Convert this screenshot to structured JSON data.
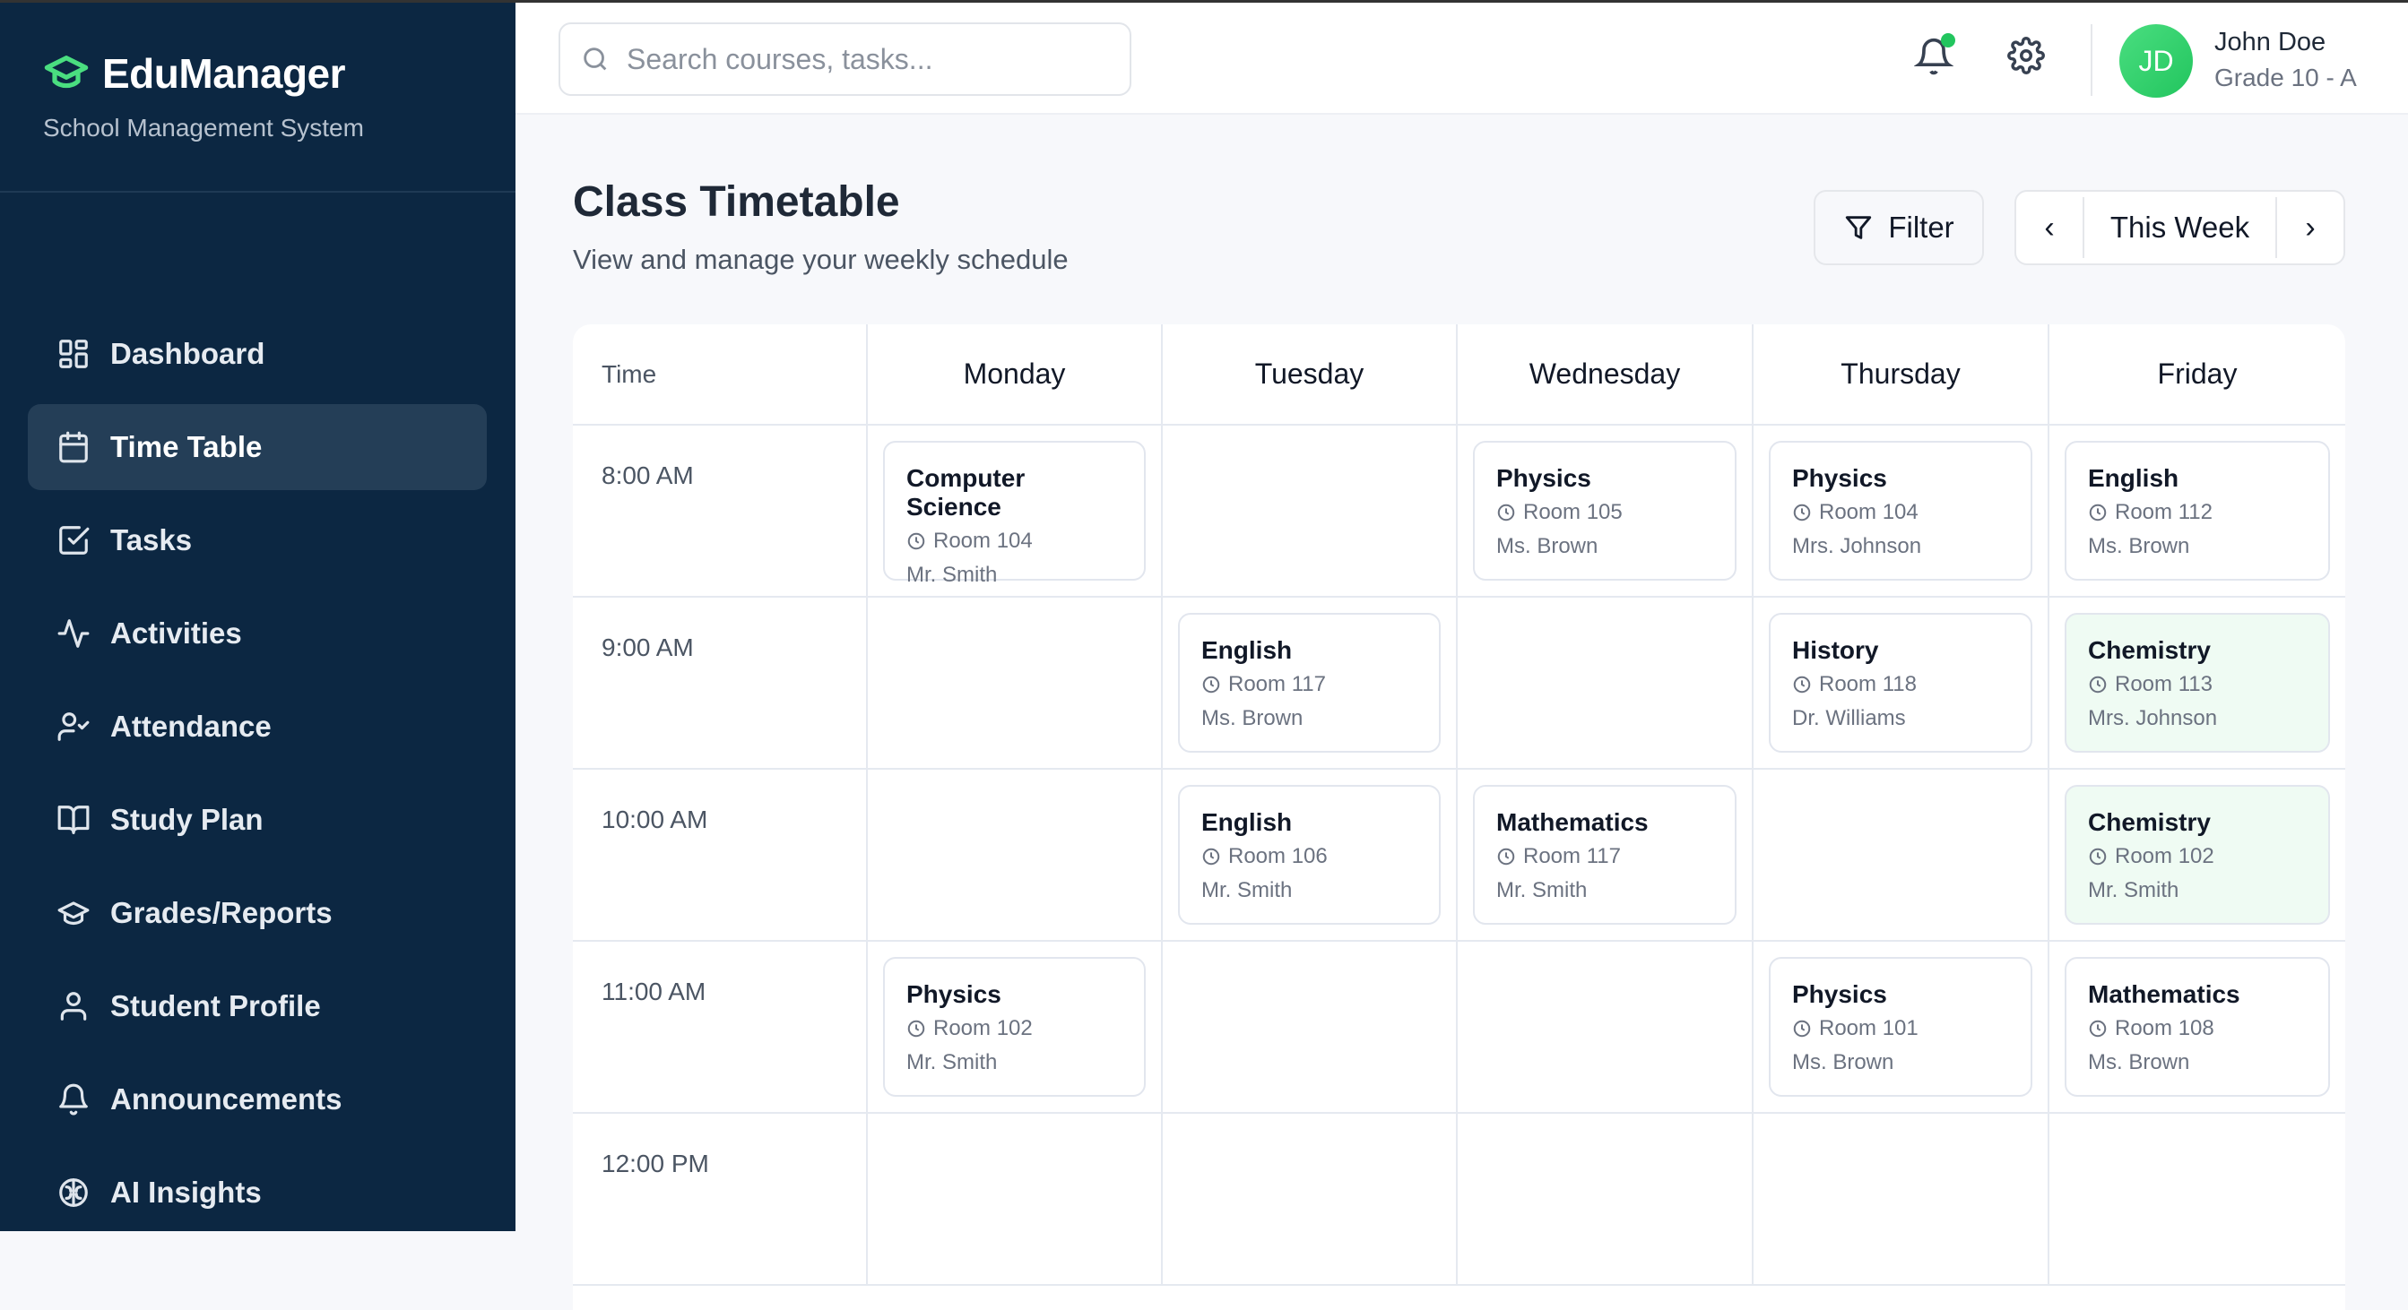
{
  "sidebar": {
    "brand": "EduManager",
    "subtitle": "School Management System",
    "items": [
      {
        "label": "Dashboard",
        "icon": "dashboard-icon"
      },
      {
        "label": "Time Table",
        "icon": "calendar-icon",
        "active": true
      },
      {
        "label": "Tasks",
        "icon": "checkbox-icon"
      },
      {
        "label": "Activities",
        "icon": "activity-icon"
      },
      {
        "label": "Attendance",
        "icon": "user-check-icon"
      },
      {
        "label": "Study Plan",
        "icon": "book-icon"
      },
      {
        "label": "Grades/Reports",
        "icon": "graduation-cap-icon"
      },
      {
        "label": "Student Profile",
        "icon": "user-icon"
      },
      {
        "label": "Announcements",
        "icon": "bell-icon"
      },
      {
        "label": "AI Insights",
        "icon": "brain-icon"
      }
    ]
  },
  "header": {
    "search_placeholder": "Search courses, tasks...",
    "user": {
      "initials": "JD",
      "name": "John Doe",
      "grade": "Grade 10 - A"
    }
  },
  "page": {
    "title": "Class Timetable",
    "subtitle": "View and manage your weekly schedule",
    "filter_label": "Filter",
    "week_label": "This Week"
  },
  "colors": {
    "accent": "#22c55e",
    "sidebar_bg": "#0c2742",
    "highlight_card": "#effbf3"
  },
  "timetable": {
    "time_header": "Time",
    "days": [
      "Monday",
      "Tuesday",
      "Wednesday",
      "Thursday",
      "Friday"
    ],
    "rows": [
      {
        "time": "8:00 AM",
        "cells": [
          {
            "subject": "Computer Science",
            "room": "Room 104",
            "teacher": "Mr. Smith"
          },
          null,
          {
            "subject": "Physics",
            "room": "Room 105",
            "teacher": "Ms. Brown"
          },
          {
            "subject": "Physics",
            "room": "Room 104",
            "teacher": "Mrs. Johnson"
          },
          {
            "subject": "English",
            "room": "Room 112",
            "teacher": "Ms. Brown"
          }
        ]
      },
      {
        "time": "9:00 AM",
        "cells": [
          null,
          {
            "subject": "English",
            "room": "Room 117",
            "teacher": "Ms. Brown"
          },
          null,
          {
            "subject": "History",
            "room": "Room 118",
            "teacher": "Dr. Williams"
          },
          {
            "subject": "Chemistry",
            "room": "Room 113",
            "teacher": "Mrs. Johnson",
            "highlight": true
          }
        ]
      },
      {
        "time": "10:00 AM",
        "cells": [
          null,
          {
            "subject": "English",
            "room": "Room 106",
            "teacher": "Mr. Smith"
          },
          {
            "subject": "Mathematics",
            "room": "Room 117",
            "teacher": "Mr. Smith"
          },
          null,
          {
            "subject": "Chemistry",
            "room": "Room 102",
            "teacher": "Mr. Smith",
            "highlight": true
          }
        ]
      },
      {
        "time": "11:00 AM",
        "cells": [
          {
            "subject": "Physics",
            "room": "Room 102",
            "teacher": "Mr. Smith"
          },
          null,
          null,
          {
            "subject": "Physics",
            "room": "Room 101",
            "teacher": "Ms. Brown"
          },
          {
            "subject": "Mathematics",
            "room": "Room 108",
            "teacher": "Ms. Brown"
          }
        ]
      },
      {
        "time": "12:00 PM",
        "cells": [
          null,
          null,
          null,
          null,
          null
        ]
      }
    ]
  }
}
